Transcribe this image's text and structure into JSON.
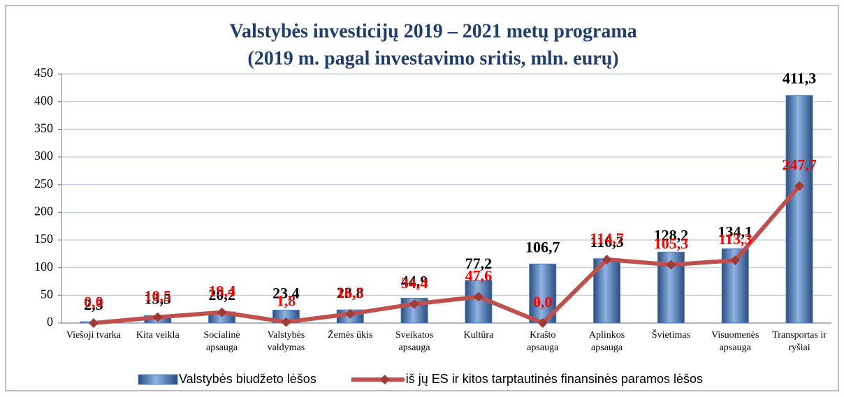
{
  "chart_data": {
    "type": "combo",
    "title": "Valstybės investicijų 2019 – 2021 metų programa",
    "subtitle": "(2019 m. pagal investavimo sritis, mln. eurų)",
    "categories": [
      "Viešoji tvarka",
      "Kita veikla",
      "Socialinė\napsauga",
      "Valstybės\nvaldymas",
      "Žemės ūkis",
      "Sveikatos\napsauga",
      "Kultūra",
      "Krašto\napsauga",
      "Aplinkos\napsauga",
      "Švietimas",
      "Visuomenės\napsauga",
      "Transportas ir\nryšiai"
    ],
    "series": [
      {
        "name": "Valstybės biudžeto lėšos",
        "type": "bar",
        "color": "#4f81bd",
        "values": [
          2.3,
          13.5,
          20.2,
          23.4,
          23.8,
          44.9,
          77.2,
          106.7,
          116.3,
          128.2,
          134.1,
          411.3
        ],
        "value_labels": [
          "2,3",
          "13,5",
          "20,2",
          "23,4",
          "23,8",
          "44,9",
          "77,2",
          "106,7",
          "116,3",
          "128,2",
          "134,1",
          "411,3"
        ]
      },
      {
        "name": "iš jų ES ir kitos tarptautinės finansinės paramos lėšos",
        "type": "line",
        "color": "#c0504d",
        "values": [
          0.0,
          10.5,
          19.4,
          1.8,
          16.5,
          34.4,
          47.6,
          0.0,
          114.7,
          105.3,
          113.3,
          247.7
        ],
        "value_labels": [
          "0,0",
          "10,5",
          "19,4",
          "1,8",
          "16,5",
          "34,4",
          "47,6",
          "0,0",
          "114,7",
          "105,3",
          "113,3",
          "247,7"
        ]
      }
    ],
    "ylim": [
      0,
      450
    ],
    "yticks": [
      0,
      50,
      100,
      150,
      200,
      250,
      300,
      350,
      400,
      450
    ],
    "grid": true,
    "legend": "bottom"
  }
}
